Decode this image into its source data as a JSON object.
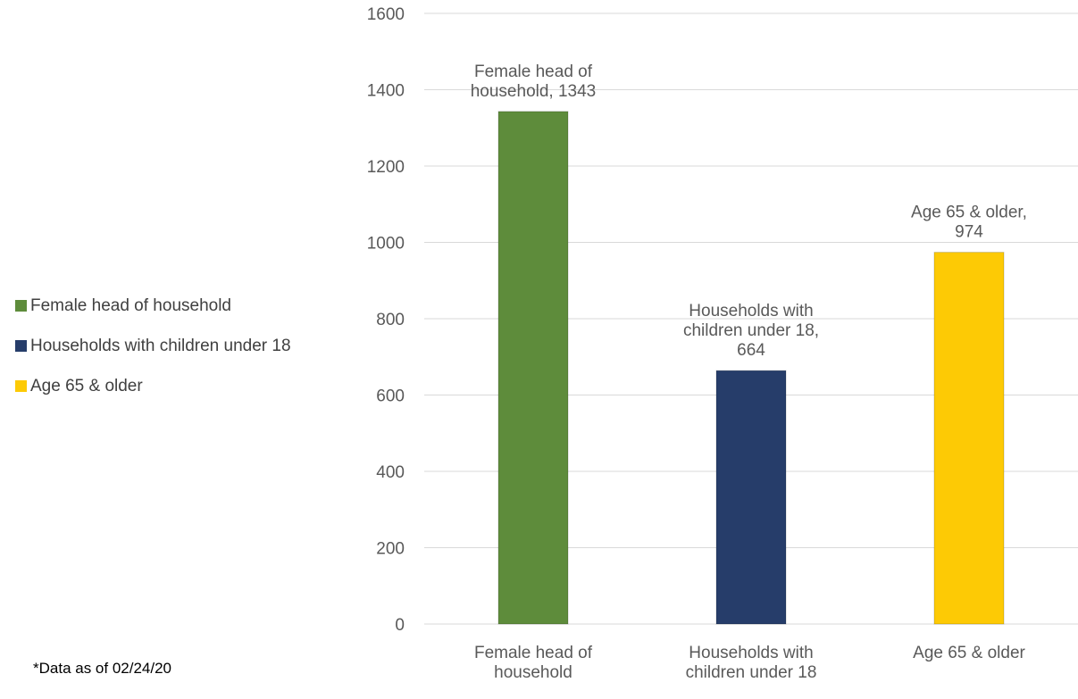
{
  "chart_data": {
    "type": "bar",
    "categories": [
      "Female head of household",
      "Households with children under 18",
      "Age 65 & older"
    ],
    "category_label_lines": [
      [
        "Female head of",
        "household"
      ],
      [
        "Households with",
        "children under 18"
      ],
      [
        "Age 65 & older"
      ]
    ],
    "values": [
      1343,
      664,
      974
    ],
    "data_label_lines": [
      [
        "Female head of",
        "household, 1343"
      ],
      [
        "Households with",
        "children under 18,",
        "664"
      ],
      [
        "Age 65 & older,",
        "974"
      ]
    ],
    "colors": [
      "#5e8c3b",
      "#263d6a",
      "#fdca05"
    ],
    "ylim": [
      0,
      1600
    ],
    "yticks": [
      0,
      200,
      400,
      600,
      800,
      1000,
      1200,
      1400,
      1600
    ],
    "grid": true,
    "gridline_color": "#d9d9d9",
    "text_color": "#595959",
    "legend_position": "left",
    "title": "",
    "xlabel": "",
    "ylabel": ""
  },
  "legend": {
    "items": [
      {
        "label": "Female head of household",
        "color": "#5e8c3b"
      },
      {
        "label": "Households with children under 18",
        "color": "#263d6a"
      },
      {
        "label": "Age 65 & older",
        "color": "#fdca05"
      }
    ]
  },
  "footnote": "*Data as of 02/24/20"
}
